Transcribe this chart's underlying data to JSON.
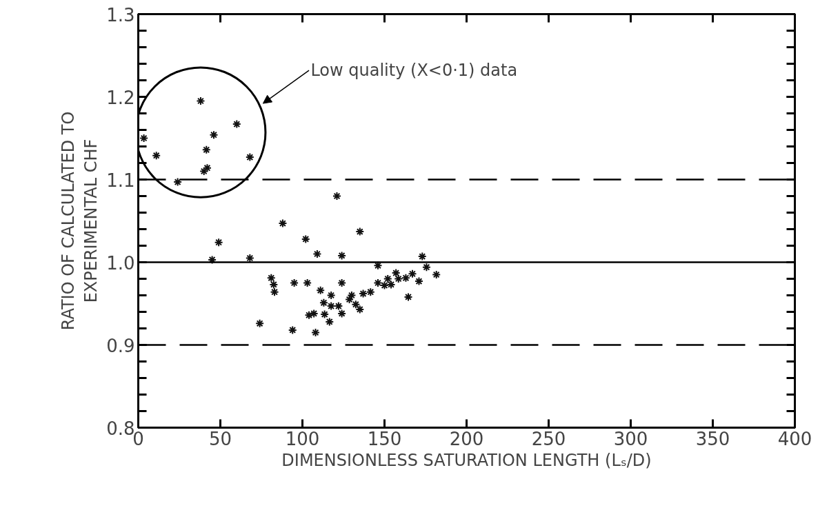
{
  "chart_data": {
    "type": "scatter",
    "xlabel": "DIMENSIONLESS SATURATION LENGTH (Lₛ/D)",
    "ylabel": "RATIO OF CALCULATED TO\nEXPERIMENTAL CHF",
    "x": [
      38,
      3.4,
      11,
      46,
      60,
      41.5,
      42,
      40,
      68,
      24,
      121,
      88,
      49,
      102,
      135,
      109,
      124,
      45,
      68,
      173,
      81,
      82.5,
      83,
      95,
      103,
      111,
      117.5,
      124,
      74,
      94,
      108,
      104,
      107,
      113.5,
      116.5,
      124,
      113,
      117.5,
      122,
      130,
      128.6,
      132.5,
      135,
      137,
      141.5,
      146,
      150,
      154,
      158.5,
      163,
      167,
      171,
      146,
      164.5,
      175.6,
      181.6,
      157,
      152
    ],
    "values": [
      1.195,
      1.15,
      1.129,
      1.154,
      1.167,
      1.136,
      1.114,
      1.11,
      1.127,
      1.097,
      1.08,
      1.047,
      1.024,
      1.028,
      1.037,
      1.01,
      1.008,
      1.003,
      1.005,
      1.007,
      0.981,
      0.973,
      0.964,
      0.975,
      0.975,
      0.966,
      0.96,
      0.975,
      0.926,
      0.918,
      0.915,
      0.936,
      0.938,
      0.937,
      0.928,
      0.938,
      0.951,
      0.947,
      0.947,
      0.96,
      0.955,
      0.949,
      0.943,
      0.962,
      0.964,
      0.975,
      0.972,
      0.973,
      0.98,
      0.981,
      0.986,
      0.977,
      0.996,
      0.958,
      0.994,
      0.985,
      0.987,
      0.98
    ],
    "color": "#111111",
    "marker": "cross",
    "xlim": [
      0,
      400
    ],
    "xticks": [
      0,
      50,
      100,
      150,
      200,
      250,
      300,
      350,
      400
    ],
    "ylim": [
      0.8,
      1.3
    ],
    "yticks": [
      {
        "value": 0.8,
        "label": "0.8"
      },
      {
        "value": 0.9,
        "label": "0.9"
      },
      {
        "value": 1.0,
        "label": "1.0"
      },
      {
        "value": 1.1,
        "label": "1.1"
      },
      {
        "value": 1.2,
        "label": "1.2"
      },
      {
        "value": 1.3,
        "label": "1.3"
      }
    ],
    "ref_lines": [
      {
        "axis": "y",
        "value": 1.1,
        "line_style": "dashed"
      },
      {
        "axis": "y",
        "value": 1.0,
        "line_style": "solid"
      },
      {
        "axis": "y",
        "value": 0.9,
        "line_style": "dashed"
      }
    ],
    "annotations": [
      "Low quality (X<0·1) data"
    ],
    "grid": false
  }
}
